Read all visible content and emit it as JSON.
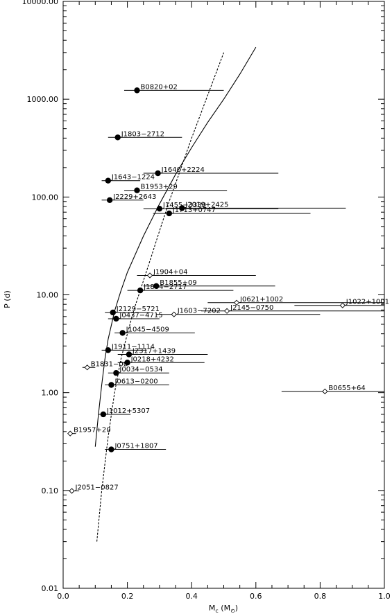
{
  "chart_data": {
    "type": "scatter",
    "title": "",
    "xlabel": "M_c (M_⊙)",
    "xlabel_parts": {
      "main": "M",
      "sub": "c",
      "unit_open": " (M",
      "unit_sub": "⊙",
      "unit_close": ")"
    },
    "ylabel": "P (d)",
    "xlim": [
      0.0,
      1.0
    ],
    "ylim": [
      0.01,
      10000
    ],
    "yscale": "log",
    "x_ticks": [
      {
        "value": 0.0,
        "label": "0.0"
      },
      {
        "value": 0.2,
        "label": "0.2"
      },
      {
        "value": 0.4,
        "label": "0.4"
      },
      {
        "value": 0.6,
        "label": "0.6"
      },
      {
        "value": 0.8,
        "label": "0.8"
      },
      {
        "value": 1.0,
        "label": "1.0"
      }
    ],
    "y_ticks": [
      {
        "value": 0.01,
        "label": "0.01"
      },
      {
        "value": 0.1,
        "label": "0.10"
      },
      {
        "value": 1,
        "label": "1.00"
      },
      {
        "value": 10,
        "label": "10.00"
      },
      {
        "value": 100,
        "label": "100.00"
      },
      {
        "value": 1000,
        "label": "1000.00"
      },
      {
        "value": 10000,
        "label": "10000.00"
      }
    ],
    "grid": false,
    "series": [
      {
        "marker": "filled-circle",
        "points": [
          {
            "name": "B0820+02",
            "x": 0.23,
            "y": 1232,
            "xmin": 0.19,
            "xmax": 0.5
          },
          {
            "name": "J1803−2712",
            "x": 0.17,
            "y": 407,
            "xmin": 0.14,
            "xmax": 0.37
          },
          {
            "name": "J1640+2224",
            "x": 0.295,
            "y": 175,
            "xmin": 0.25,
            "xmax": 0.67
          },
          {
            "name": "J1643−1224",
            "x": 0.14,
            "y": 147,
            "xmin": 0.12,
            "xmax": 0.24
          },
          {
            "name": "B1953+29",
            "x": 0.23,
            "y": 117,
            "xmin": 0.19,
            "xmax": 0.51
          },
          {
            "name": "J2229+2643",
            "x": 0.145,
            "y": 93,
            "xmin": 0.12,
            "xmax": 0.25
          },
          {
            "name": "J1455−3330",
            "x": 0.3,
            "y": 76,
            "xmin": 0.25,
            "xmax": 0.67
          },
          {
            "name": "J2019+2425",
            "x": 0.37,
            "y": 77,
            "xmin": 0.32,
            "xmax": 0.88
          },
          {
            "name": "J1713+0747",
            "x": 0.33,
            "y": 68,
            "xmin": 0.28,
            "xmax": 0.77
          },
          {
            "name": "B1855+09",
            "x": 0.29,
            "y": 12.3,
            "xmin": 0.25,
            "xmax": 0.66
          },
          {
            "name": "J1804−2717",
            "x": 0.24,
            "y": 11.1,
            "xmin": 0.2,
            "xmax": 0.53
          },
          {
            "name": "J2129−5721",
            "x": 0.155,
            "y": 6.6,
            "xmin": 0.13,
            "xmax": 0.27
          },
          {
            "name": "J0437−4715",
            "x": 0.165,
            "y": 5.7,
            "xmin": 0.14,
            "xmax": 0.3
          },
          {
            "name": "J1045−4509",
            "x": 0.185,
            "y": 4.08,
            "xmin": 0.16,
            "xmax": 0.41
          },
          {
            "name": "J1911−1114",
            "x": 0.14,
            "y": 2.72,
            "xmin": 0.12,
            "xmax": 0.26
          },
          {
            "name": "J2317+1439",
            "x": 0.205,
            "y": 2.46,
            "xmin": 0.17,
            "xmax": 0.45
          },
          {
            "name": "J0218+4232",
            "x": 0.2,
            "y": 2.03,
            "xmin": 0.17,
            "xmax": 0.44
          },
          {
            "name": "J0034−0534",
            "x": 0.165,
            "y": 1.59,
            "xmin": 0.14,
            "xmax": 0.33
          },
          {
            "name": "J0613−0200",
            "x": 0.15,
            "y": 1.2,
            "xmin": 0.13,
            "xmax": 0.33
          },
          {
            "name": "J1012+5307",
            "x": 0.125,
            "y": 0.6,
            "xmin": 0.11,
            "xmax": 0.21
          },
          {
            "name": "J0751+1807",
            "x": 0.15,
            "y": 0.263,
            "xmin": 0.13,
            "xmax": 0.32
          }
        ]
      },
      {
        "marker": "open-diamond",
        "points": [
          {
            "name": "J1904+04",
            "x": 0.27,
            "y": 15.8,
            "xmin": 0.23,
            "xmax": 0.6
          },
          {
            "name": "J0621+1002",
            "x": 0.54,
            "y": 8.32,
            "xmin": 0.45,
            "xmax": 1.0
          },
          {
            "name": "J1022+1001",
            "x": 0.87,
            "y": 7.8,
            "xmin": 0.72,
            "xmax": 1.0
          },
          {
            "name": "J2145−0750",
            "x": 0.51,
            "y": 6.84,
            "xmin": 0.43,
            "xmax": 1.0
          },
          {
            "name": "J1603−7202",
            "x": 0.345,
            "y": 6.31,
            "xmin": 0.29,
            "xmax": 0.8
          },
          {
            "name": "B1831−00",
            "x": 0.075,
            "y": 1.81,
            "xmin": 0.06,
            "xmax": 0.1
          },
          {
            "name": "B0655+64",
            "x": 0.815,
            "y": 1.03,
            "xmin": 0.68,
            "xmax": 1.0
          },
          {
            "name": "B1957+20",
            "x": 0.022,
            "y": 0.382,
            "xmin": 0.018,
            "xmax": 0.04
          },
          {
            "name": "J2051−0827",
            "x": 0.027,
            "y": 0.099,
            "xmin": 0.022,
            "xmax": 0.05
          }
        ]
      }
    ],
    "curves": [
      {
        "style": "solid",
        "points": [
          [
            0.1,
            0.28
          ],
          [
            0.11,
            0.6
          ],
          [
            0.12,
            1.2
          ],
          [
            0.13,
            2.2
          ],
          [
            0.14,
            3.5
          ],
          [
            0.16,
            6.8
          ],
          [
            0.18,
            11
          ],
          [
            0.2,
            17
          ],
          [
            0.25,
            40
          ],
          [
            0.3,
            85
          ],
          [
            0.35,
            170
          ],
          [
            0.4,
            320
          ],
          [
            0.45,
            580
          ],
          [
            0.5,
            1000
          ],
          [
            0.55,
            1800
          ],
          [
            0.6,
            3400
          ]
        ]
      },
      {
        "style": "dashed",
        "points": [
          [
            0.105,
            0.03
          ],
          [
            0.12,
            0.1
          ],
          [
            0.14,
            0.35
          ],
          [
            0.16,
            1.0
          ],
          [
            0.18,
            2.2
          ],
          [
            0.2,
            4.0
          ],
          [
            0.22,
            7.0
          ],
          [
            0.25,
            14
          ],
          [
            0.28,
            28
          ],
          [
            0.3,
            45
          ],
          [
            0.33,
            90
          ],
          [
            0.36,
            170
          ],
          [
            0.4,
            400
          ],
          [
            0.45,
            1100
          ],
          [
            0.5,
            3000
          ]
        ]
      }
    ]
  }
}
